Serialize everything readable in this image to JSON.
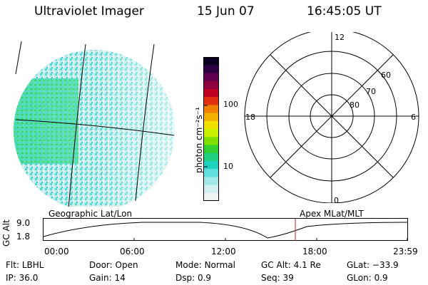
{
  "header": {
    "instrument": "Ultraviolet Imager",
    "date": "15 Jun 07",
    "time": "16:45:05 UT"
  },
  "colorbar": {
    "unit_label": "photon cm⁻²s⁻¹",
    "ticks": [
      "100",
      "10"
    ],
    "colors": [
      "#0a0020",
      "#2a0040",
      "#600050",
      "#900040",
      "#c00020",
      "#e03010",
      "#f08000",
      "#f0b000",
      "#f0e000",
      "#c8f000",
      "#80e000",
      "#30d030",
      "#20d080",
      "#20d0c0",
      "#60e0e0",
      "#a0e8e8",
      "#d0f0f0",
      "#f0f4f4"
    ]
  },
  "polar_plot": {
    "mlt_labels": {
      "top": "12",
      "left": "18",
      "right": "6",
      "bottom": "0"
    },
    "lat_labels": [
      "60",
      "70",
      "80"
    ]
  },
  "map_labels": {
    "left": "Geographic Lat/Lon",
    "right": "Apex MLat/MLT"
  },
  "altitude_chart": {
    "axis_title": "GC Alt",
    "y_ticks": [
      "9.0",
      "1.8"
    ],
    "x_ticks": [
      "00:00",
      "06:00",
      "12:00",
      "18:00",
      "23:59"
    ],
    "marker_time": "16:45:05",
    "marker_color": "#d02020"
  },
  "status": {
    "filter": {
      "label": "Flt:",
      "value": "LBHL"
    },
    "door": {
      "label": "Door:",
      "value": "Open"
    },
    "mode": {
      "label": "Mode:",
      "value": "Normal"
    },
    "gc_alt": {
      "label": "GC Alt:",
      "value": "4.1 Re"
    },
    "glat": {
      "label": "GLat:",
      "value": "−33.9"
    },
    "ip": {
      "label": "IP:",
      "value": "36.0"
    },
    "gain": {
      "label": "Gain:",
      "value": "14"
    },
    "dsp": {
      "label": "Dsp:",
      "value": "0.9"
    },
    "seq": {
      "label": "Seq:",
      "value": "39"
    },
    "glon": {
      "label": "GLon:",
      "value": "0.9"
    }
  }
}
